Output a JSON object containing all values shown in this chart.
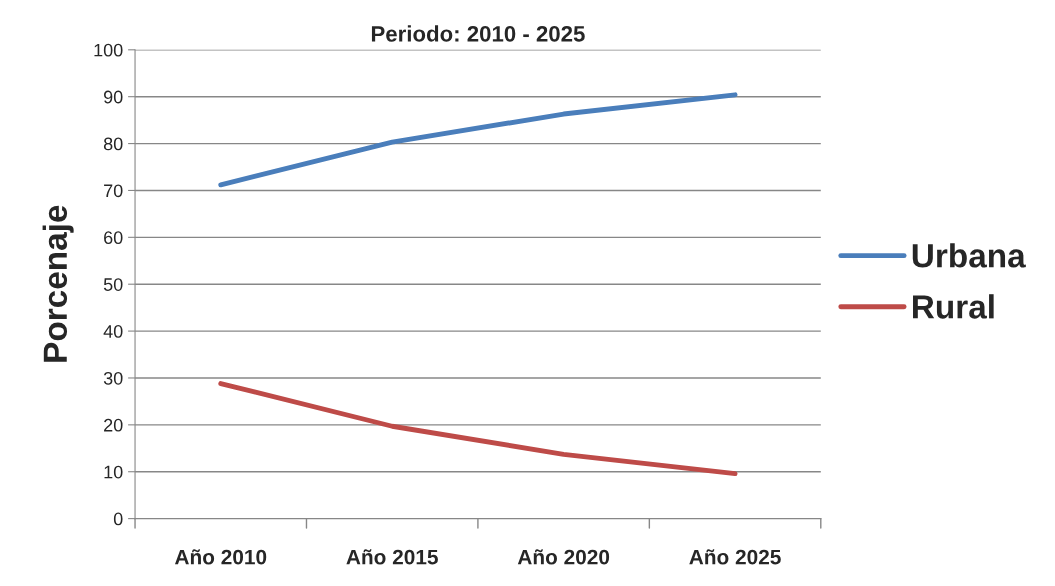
{
  "chart_data": {
    "type": "line",
    "title": "Periodo: 2010 - 2025",
    "ylabel": "Porcenaje",
    "categories": [
      "Año 2010",
      "Año 2015",
      "Año 2020",
      "Año 2025"
    ],
    "series": [
      {
        "name": "Urbana",
        "color": "#4a7ebb",
        "values": [
          71.2,
          80.3,
          86.3,
          90.4
        ]
      },
      {
        "name": "Rural",
        "color": "#be4b48",
        "values": [
          28.8,
          19.7,
          13.7,
          9.6
        ]
      }
    ],
    "ylim": [
      0,
      100
    ],
    "yticks": [
      0,
      10,
      20,
      30,
      40,
      50,
      60,
      70,
      80,
      90,
      100
    ],
    "grid": "y",
    "legend": "right",
    "marker": "none",
    "line_style": "solid"
  }
}
